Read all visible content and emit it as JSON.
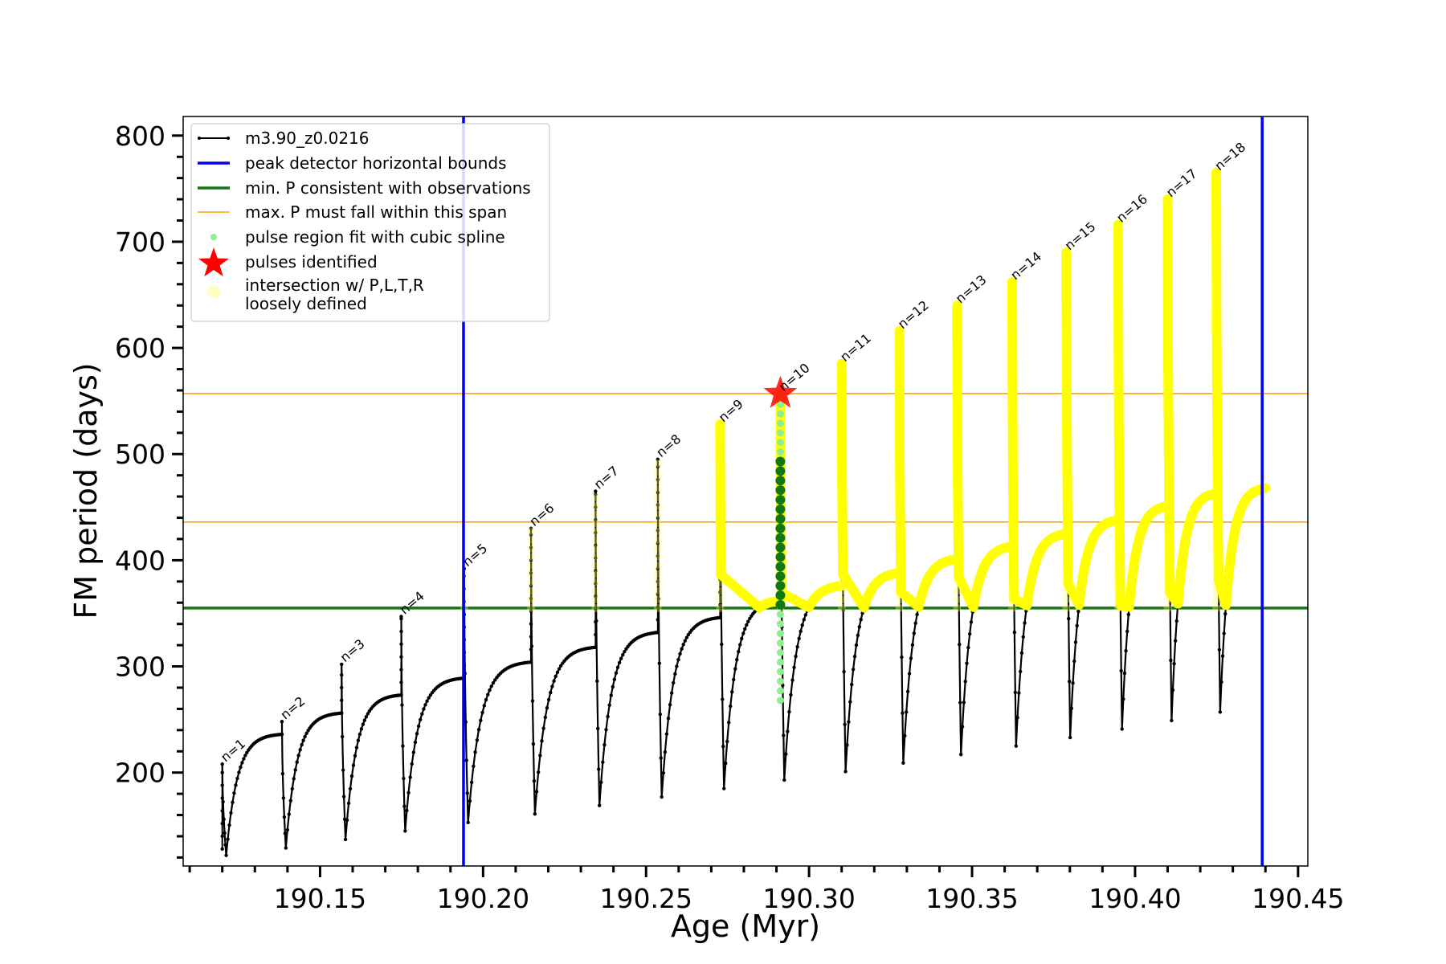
{
  "chart_data": {
    "type": "line",
    "xlabel": "Age (Myr)",
    "ylabel": "FM period (days)",
    "xlim": [
      190.108,
      190.453
    ],
    "ylim": [
      112,
      818
    ],
    "xticks": [
      190.15,
      190.2,
      190.25,
      190.3,
      190.35,
      190.4,
      190.45
    ],
    "xtick_labels": [
      "190.15",
      "190.20",
      "190.25",
      "190.30",
      "190.35",
      "190.40",
      "190.45"
    ],
    "yticks": [
      200,
      300,
      400,
      500,
      600,
      700,
      800
    ],
    "ytick_labels": [
      "200",
      "300",
      "400",
      "500",
      "600",
      "700",
      "800"
    ],
    "grid": false,
    "legend_position": "top-left",
    "legend": [
      {
        "label": "m3.90_z0.0216",
        "style": "line-marker",
        "color": "#000000"
      },
      {
        "label": "peak detector horizontal bounds",
        "style": "line",
        "color": "#0000ee"
      },
      {
        "label": "min. P consistent with observations",
        "style": "line",
        "color": "#117711"
      },
      {
        "label": "max. P must fall within this span",
        "style": "thin-line",
        "color": "#ffa500"
      },
      {
        "label": "pulse region fit with cubic spline",
        "style": "dot",
        "color": "#90ee90"
      },
      {
        "label": "pulses identified",
        "style": "star",
        "color": "#ff0000"
      },
      {
        "label": "intersection w/ P,L,T,R",
        "label2": "loosely defined",
        "style": "big-dot",
        "color": "#ffffaa"
      }
    ],
    "vertical_bounds": [
      190.194,
      190.439
    ],
    "min_period_line": 355,
    "max_period_span": [
      436,
      557
    ],
    "pulses": [
      {
        "label": "n=1",
        "x": 190.12,
        "peak": 208,
        "min": 122,
        "pre": null
      },
      {
        "label": "n=2",
        "x": 190.1383,
        "peak": 248,
        "min": 129,
        "pre": 236
      },
      {
        "label": "n=3",
        "x": 190.1566,
        "peak": 302,
        "min": 137,
        "pre": 256
      },
      {
        "label": "n=4",
        "x": 190.1749,
        "peak": 347,
        "min": 145,
        "pre": 273
      },
      {
        "label": "n=5",
        "x": 190.1942,
        "peak": 392,
        "min": 153,
        "pre": 289
      },
      {
        "label": "n=6",
        "x": 190.2147,
        "peak": 430,
        "min": 161,
        "pre": 304
      },
      {
        "label": "n=7",
        "x": 190.2345,
        "peak": 465,
        "min": 169,
        "pre": 318
      },
      {
        "label": "n=8",
        "x": 190.2536,
        "peak": 495,
        "min": 177,
        "pre": 332
      },
      {
        "label": "n=9",
        "x": 190.2727,
        "peak": 528,
        "min": 185,
        "pre": 346
      },
      {
        "label": "n=10",
        "x": 190.2912,
        "peak": 557,
        "min": 193,
        "pre": 362
      },
      {
        "label": "n=11",
        "x": 190.31,
        "peak": 585,
        "min": 201,
        "pre": 376
      },
      {
        "label": "n=12",
        "x": 190.3277,
        "peak": 616,
        "min": 209,
        "pre": 388
      },
      {
        "label": "n=13",
        "x": 190.3454,
        "peak": 640,
        "min": 217,
        "pre": 401
      },
      {
        "label": "n=14",
        "x": 190.3623,
        "peak": 662,
        "min": 225,
        "pre": 413
      },
      {
        "label": "n=15",
        "x": 190.3789,
        "peak": 690,
        "min": 233,
        "pre": 425
      },
      {
        "label": "n=16",
        "x": 190.3948,
        "peak": 716,
        "min": 241,
        "pre": 438
      },
      {
        "label": "n=17",
        "x": 190.41,
        "peak": 740,
        "min": 249,
        "pre": 451
      },
      {
        "label": "n=18",
        "x": 190.4249,
        "peak": 765,
        "min": 257,
        "pre": 463
      }
    ],
    "end_point": {
      "x": 190.44,
      "y": 468
    },
    "pulse_identified": {
      "x": 190.2912,
      "y": 557
    },
    "spline_fit": {
      "x": 190.2912,
      "y_range": [
        268,
        557
      ]
    }
  }
}
